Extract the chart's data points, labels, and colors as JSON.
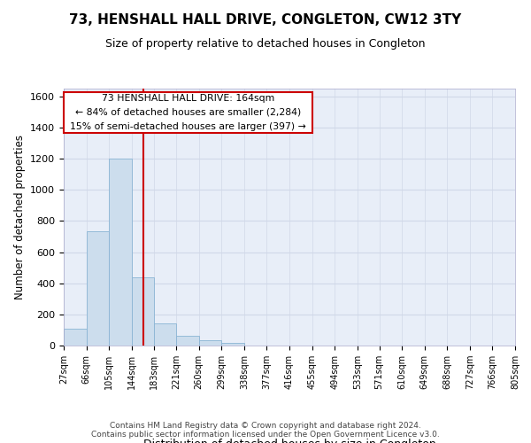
{
  "title": "73, HENSHALL HALL DRIVE, CONGLETON, CW12 3TY",
  "subtitle": "Size of property relative to detached houses in Congleton",
  "xlabel": "Distribution of detached houses by size in Congleton",
  "ylabel": "Number of detached properties",
  "bar_color": "#ccdded",
  "bar_edge_color": "#8ab4d4",
  "background_color": "#e8eef8",
  "grid_color": "#d0d8e8",
  "annotation_line_color": "#cc0000",
  "annotation_box_color": "#cc0000",
  "annotation_text": "73 HENSHALL HALL DRIVE: 164sqm\n← 84% of detached houses are smaller (2,284)\n15% of semi-detached houses are larger (397) →",
  "property_size": 164,
  "bin_edges": [
    27,
    66,
    105,
    144,
    183,
    221,
    260,
    299,
    338,
    377,
    416,
    455,
    494,
    533,
    571,
    610,
    649,
    688,
    727,
    766,
    805
  ],
  "bin_labels": [
    "27sqm",
    "66sqm",
    "105sqm",
    "144sqm",
    "183sqm",
    "221sqm",
    "260sqm",
    "299sqm",
    "338sqm",
    "377sqm",
    "416sqm",
    "455sqm",
    "494sqm",
    "533sqm",
    "571sqm",
    "610sqm",
    "649sqm",
    "688sqm",
    "727sqm",
    "766sqm",
    "805sqm"
  ],
  "bar_heights": [
    110,
    735,
    1200,
    440,
    145,
    60,
    35,
    18,
    0,
    0,
    0,
    0,
    0,
    0,
    0,
    0,
    0,
    0,
    0,
    0
  ],
  "ylim": [
    0,
    1650
  ],
  "yticks": [
    0,
    200,
    400,
    600,
    800,
    1000,
    1200,
    1400,
    1600
  ],
  "footnote": "Contains HM Land Registry data © Crown copyright and database right 2024.\nContains public sector information licensed under the Open Government Licence v3.0.",
  "title_fontsize": 11,
  "subtitle_fontsize": 9,
  "ylabel_fontsize": 8.5,
  "xlabel_fontsize": 9
}
